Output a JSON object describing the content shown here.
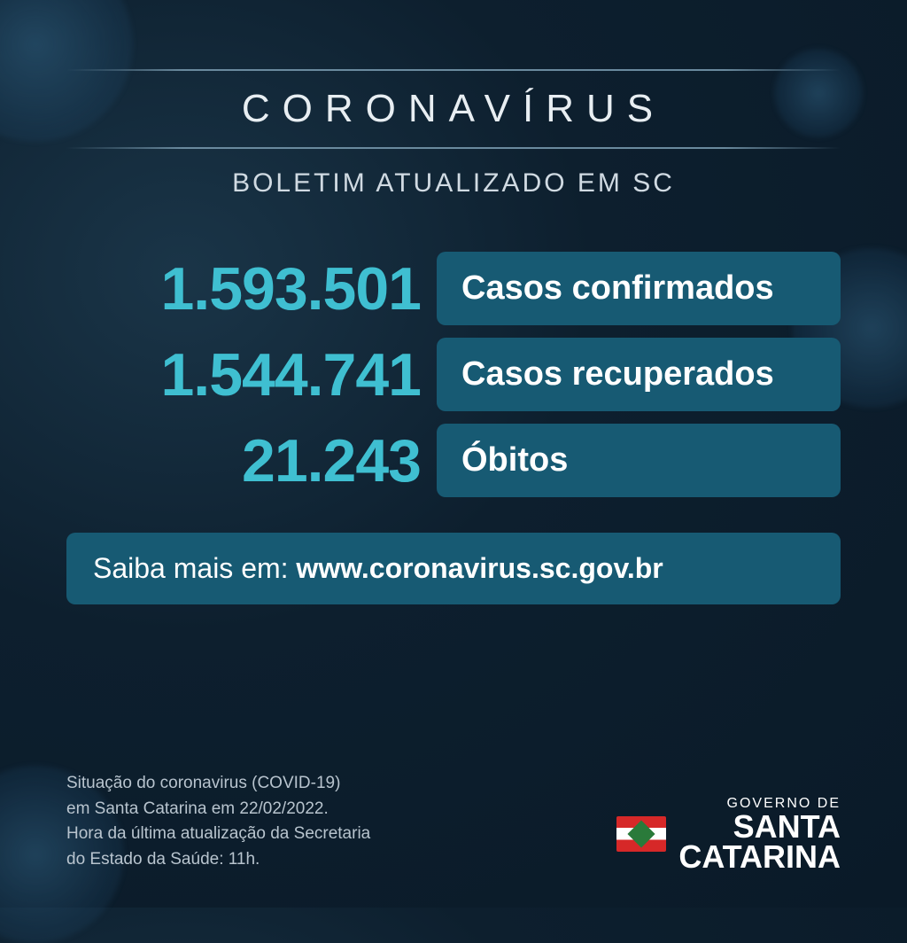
{
  "colors": {
    "accent_cyan": "#3fbfd1",
    "box_bg": "#175a73",
    "text_light": "#e8eef2",
    "text_muted": "#b8c4ce",
    "white": "#ffffff"
  },
  "header": {
    "title": "CORONAVÍRUS",
    "subtitle": "BOLETIM ATUALIZADO EM SC"
  },
  "stats": [
    {
      "value": "1.593.501",
      "label": "Casos confirmados"
    },
    {
      "value": "1.544.741",
      "label": "Casos recuperados"
    },
    {
      "value": "21.243",
      "label": "Óbitos"
    }
  ],
  "link": {
    "label": "Saiba mais em: ",
    "url": "www.coronavirus.sc.gov.br"
  },
  "footer": {
    "line1": "Situação do coronavirus (COVID-19)",
    "line2": "em Santa Catarina em 22/02/2022.",
    "line3": "Hora da última atualização da Secretaria",
    "line4": "do Estado da Saúde: 11h."
  },
  "logo": {
    "small": "GOVERNO DE",
    "big1": "SANTA",
    "big2": "CATARINA"
  }
}
